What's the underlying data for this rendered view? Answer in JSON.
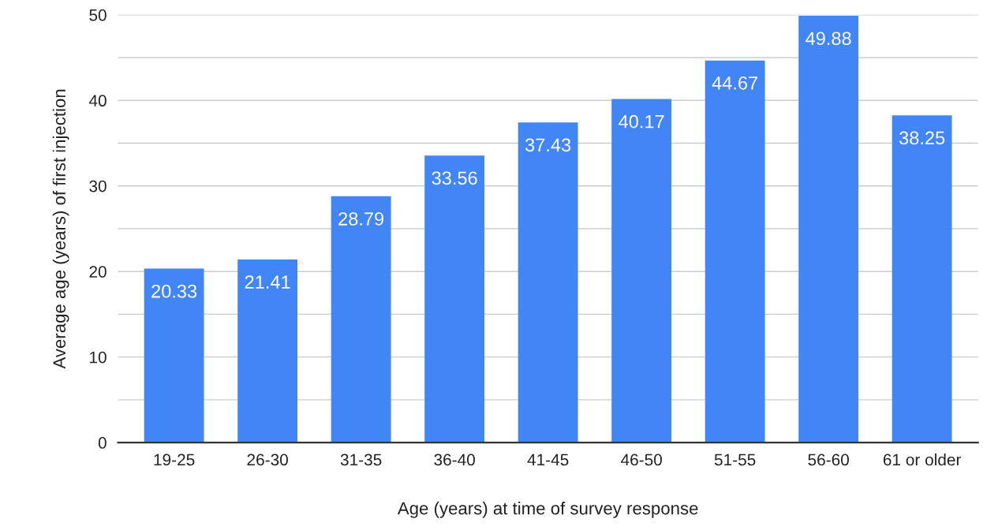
{
  "chart_data": {
    "type": "bar",
    "xlabel": "Age (years) at time of survey response",
    "ylabel": "Average age (years) of first injection",
    "categories": [
      "19-25",
      "26-30",
      "31-35",
      "36-40",
      "41-45",
      "46-50",
      "51-55",
      "56-60",
      "61 or older"
    ],
    "values": [
      20.33,
      21.41,
      28.79,
      33.56,
      37.43,
      40.17,
      44.67,
      49.88,
      38.25
    ],
    "color": "#4285f4",
    "data_labels": true,
    "grid": "y",
    "legend": false,
    "ylim": [
      0,
      50
    ],
    "yticks": [
      0,
      {
        "value": 5,
        "label": null
      },
      10,
      {
        "value": 15,
        "label": null
      },
      20,
      {
        "value": 25,
        "label": null
      },
      30,
      {
        "value": 35,
        "label": null
      },
      40,
      {
        "value": 45,
        "label": null
      },
      50
    ]
  }
}
